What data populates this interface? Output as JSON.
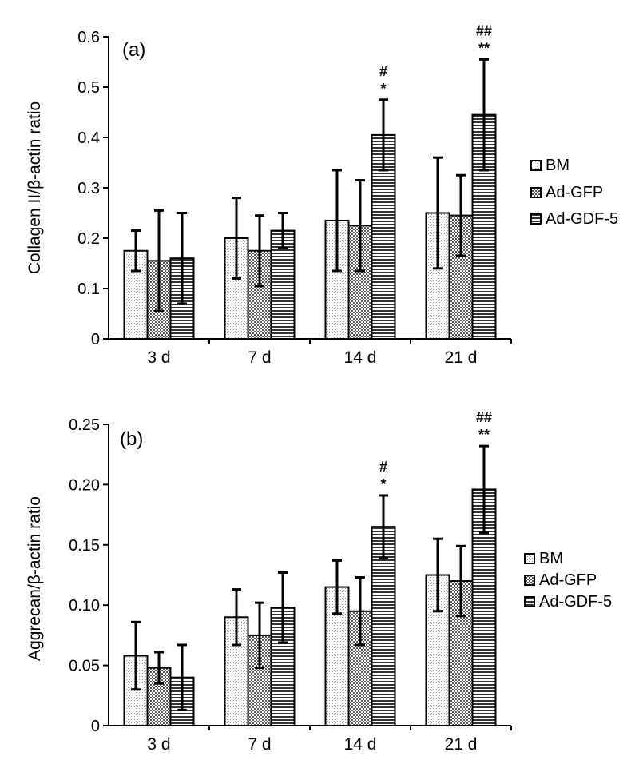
{
  "chart_data": [
    {
      "type": "bar",
      "panel_label": "(a)",
      "ylabel": "Collagen II/β-actin ratio",
      "categories": [
        "3 d",
        "7 d",
        "14 d",
        "21 d"
      ],
      "ylim": [
        0,
        0.6
      ],
      "yticks": [
        "0",
        "0.1",
        "0.2",
        "0.3",
        "0.4",
        "0.5",
        "0.6"
      ],
      "series": [
        {
          "name": "BM",
          "values": [
            0.175,
            0.2,
            0.235,
            0.25
          ],
          "errors": [
            0.04,
            0.08,
            0.1,
            0.11
          ]
        },
        {
          "name": "Ad-GFP",
          "values": [
            0.155,
            0.175,
            0.225,
            0.245
          ],
          "errors": [
            0.1,
            0.07,
            0.09,
            0.08
          ]
        },
        {
          "name": "Ad-GDF-5",
          "values": [
            0.16,
            0.215,
            0.405,
            0.445
          ],
          "errors": [
            0.09,
            0.035,
            0.07,
            0.11
          ]
        }
      ],
      "annotations": [
        {
          "category": "14 d",
          "series": "Ad-GDF-5",
          "lines": [
            "#",
            "*"
          ]
        },
        {
          "category": "21 d",
          "series": "Ad-GDF-5",
          "lines": [
            "##",
            "**"
          ]
        }
      ],
      "legend_position": "right",
      "grid": false
    },
    {
      "type": "bar",
      "panel_label": "(b)",
      "ylabel": "Aggrecan/β-actin ratio",
      "categories": [
        "3 d",
        "7 d",
        "14 d",
        "21 d"
      ],
      "ylim": [
        0,
        0.25
      ],
      "yticks": [
        "0",
        "0.05",
        "0.10",
        "0.15",
        "0.20",
        "0.25"
      ],
      "series": [
        {
          "name": "BM",
          "values": [
            0.058,
            0.09,
            0.115,
            0.125
          ],
          "errors": [
            0.028,
            0.023,
            0.022,
            0.03
          ]
        },
        {
          "name": "Ad-GFP",
          "values": [
            0.048,
            0.075,
            0.095,
            0.12
          ],
          "errors": [
            0.013,
            0.027,
            0.028,
            0.029
          ]
        },
        {
          "name": "Ad-GDF-5",
          "values": [
            0.04,
            0.098,
            0.165,
            0.196
          ],
          "errors": [
            0.027,
            0.029,
            0.026,
            0.036
          ]
        }
      ],
      "annotations": [
        {
          "category": "14 d",
          "series": "Ad-GDF-5",
          "lines": [
            "#",
            "*"
          ]
        },
        {
          "category": "21 d",
          "series": "Ad-GDF-5",
          "lines": [
            "##",
            "**"
          ]
        }
      ],
      "legend_position": "right",
      "grid": false
    }
  ]
}
